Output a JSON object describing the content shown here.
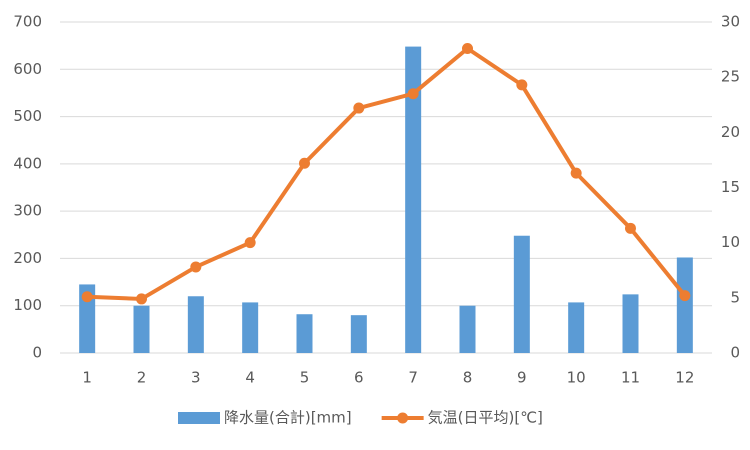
{
  "chart_data": {
    "type": "bar",
    "categories": [
      "1",
      "2",
      "3",
      "4",
      "5",
      "6",
      "7",
      "8",
      "9",
      "10",
      "11",
      "12"
    ],
    "series": [
      {
        "name": "降水量(合計)[mm]",
        "color": "#5b9bd5",
        "type": "bar",
        "axis": "y",
        "values": [
          145,
          100,
          120,
          107,
          82,
          80,
          648,
          100,
          248,
          107,
          124,
          202
        ]
      },
      {
        "name": "気温(日平均)[℃]",
        "color": "#ed7d31",
        "type": "line",
        "axis": "y2",
        "values": [
          5.1,
          4.9,
          7.8,
          10.0,
          17.2,
          22.2,
          23.5,
          27.6,
          24.3,
          16.3,
          11.3,
          5.2
        ]
      }
    ],
    "ylim": [
      0,
      700
    ],
    "yticks": [
      0,
      100,
      200,
      300,
      400,
      500,
      600,
      700
    ],
    "y2lim": [
      0,
      30
    ],
    "y2ticks": [
      0,
      5,
      10,
      15,
      20,
      25,
      30
    ],
    "grid": true,
    "legend": "bottom"
  }
}
